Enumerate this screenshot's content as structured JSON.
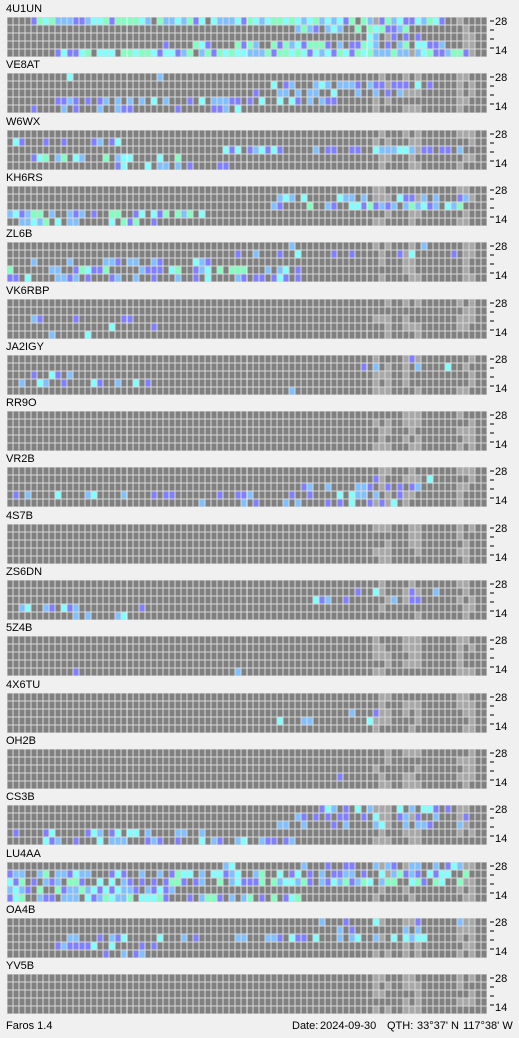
{
  "app": {
    "name": "Faros 1.4"
  },
  "status_bar": {
    "date_label": "Date:",
    "date": "2024-09-30",
    "qth_label": "QTH:",
    "qth_lat": "33°37' N",
    "qth_lon": "117°38' W"
  },
  "axis": {
    "top": "28",
    "bottom": "14"
  },
  "colors": {
    "background": "#f0f0f0",
    "cell_empty": "#808080",
    "cell_highlight": "#a8a8a8",
    "gridline": "#d8d8d8",
    "signal_weak": "#8080ff",
    "signal_medium": "#80c0ff",
    "signal_strong": "#80ffff",
    "signal_max": "#80ffc0"
  },
  "beacons": [
    {
      "call": "4U1UN",
      "seed": 11,
      "activity": [
        [
          0.85,
          0.05,
          0.9
        ],
        [
          0.6,
          0.6,
          0.85
        ],
        [
          0.35,
          0.75,
          0.85
        ],
        [
          0.75,
          0.3,
          0.9
        ],
        [
          0.9,
          0.1,
          0.95
        ]
      ]
    },
    {
      "call": "VE8AT",
      "seed": 23,
      "activity": [
        [
          0.05,
          0.0,
          0.45
        ],
        [
          0.35,
          0.55,
          0.9
        ],
        [
          0.4,
          0.5,
          0.9
        ],
        [
          0.5,
          0.1,
          0.7
        ],
        [
          0.25,
          0.05,
          0.5
        ]
      ]
    },
    {
      "call": "W6WX",
      "seed": 37,
      "activity": [
        [
          0.1,
          0.0,
          0.2
        ],
        [
          0.3,
          0.0,
          0.3
        ],
        [
          0.5,
          0.45,
          0.95
        ],
        [
          0.55,
          0.05,
          0.35
        ],
        [
          0.3,
          0.2,
          0.45
        ]
      ]
    },
    {
      "call": "KH6RS",
      "seed": 41,
      "activity": [
        [
          0.05,
          0.55,
          0.9
        ],
        [
          0.5,
          0.55,
          0.95
        ],
        [
          0.6,
          0.55,
          0.95
        ],
        [
          0.75,
          0.0,
          0.4
        ],
        [
          0.55,
          0.0,
          0.35
        ]
      ]
    },
    {
      "call": "ZL6B",
      "seed": 53,
      "activity": [
        [
          0.05,
          0.45,
          0.95
        ],
        [
          0.2,
          0.45,
          0.95
        ],
        [
          0.35,
          0.0,
          0.5
        ],
        [
          0.55,
          0.0,
          0.6
        ],
        [
          0.5,
          0.0,
          0.6
        ]
      ]
    },
    {
      "call": "VK6RBP",
      "seed": 67,
      "activity": [
        [
          0.0,
          0.0,
          0.1
        ],
        [
          0.0,
          0.0,
          0.1
        ],
        [
          0.1,
          0.0,
          0.3
        ],
        [
          0.08,
          0.0,
          0.4
        ],
        [
          0.05,
          0.0,
          0.6
        ]
      ]
    },
    {
      "call": "JA2IGY",
      "seed": 71,
      "activity": [
        [
          0.08,
          0.8,
          0.95
        ],
        [
          0.1,
          0.7,
          0.95
        ],
        [
          0.15,
          0.0,
          0.2
        ],
        [
          0.25,
          0.0,
          0.3
        ],
        [
          0.1,
          0.4,
          0.6
        ]
      ]
    },
    {
      "call": "RR9O",
      "seed": 83,
      "activity": [
        [
          0.0,
          0.0,
          0.1
        ],
        [
          0.0,
          0.0,
          0.1
        ],
        [
          0.0,
          0.0,
          0.1
        ],
        [
          0.0,
          0.0,
          0.1
        ],
        [
          0.02,
          0.0,
          0.15
        ]
      ]
    },
    {
      "call": "VR2B",
      "seed": 97,
      "activity": [
        [
          0.08,
          0.75,
          0.95
        ],
        [
          0.15,
          0.7,
          0.95
        ],
        [
          0.35,
          0.6,
          0.85
        ],
        [
          0.3,
          0.0,
          0.85
        ],
        [
          0.25,
          0.4,
          0.85
        ]
      ]
    },
    {
      "call": "4S7B",
      "seed": 101,
      "activity": [
        [
          0.0,
          0.0,
          0.1
        ],
        [
          0.0,
          0.0,
          0.1
        ],
        [
          0.0,
          0.0,
          0.1
        ],
        [
          0.0,
          0.0,
          0.1
        ],
        [
          0.0,
          0.0,
          0.1
        ]
      ]
    },
    {
      "call": "ZS6DN",
      "seed": 113,
      "activity": [
        [
          0.0,
          0.0,
          0.1
        ],
        [
          0.3,
          0.7,
          0.9
        ],
        [
          0.4,
          0.6,
          0.85
        ],
        [
          0.3,
          0.0,
          0.3
        ],
        [
          0.25,
          0.0,
          0.25
        ]
      ]
    },
    {
      "call": "5Z4B",
      "seed": 127,
      "activity": [
        [
          0.0,
          0.0,
          0.1
        ],
        [
          0.0,
          0.0,
          0.1
        ],
        [
          0.0,
          0.0,
          0.1
        ],
        [
          0.05,
          0.0,
          0.1
        ],
        [
          0.03,
          0.0,
          0.6
        ]
      ]
    },
    {
      "call": "4X6TU",
      "seed": 131,
      "activity": [
        [
          0.0,
          0.0,
          0.1
        ],
        [
          0.0,
          0.0,
          0.1
        ],
        [
          0.15,
          0.55,
          0.8
        ],
        [
          0.2,
          0.55,
          0.75
        ],
        [
          0.08,
          0.55,
          0.7
        ]
      ]
    },
    {
      "call": "OH2B",
      "seed": 139,
      "activity": [
        [
          0.0,
          0.0,
          0.1
        ],
        [
          0.0,
          0.0,
          0.1
        ],
        [
          0.0,
          0.0,
          0.1
        ],
        [
          0.1,
          0.55,
          0.75
        ],
        [
          0.0,
          0.0,
          0.1
        ]
      ]
    },
    {
      "call": "CS3B",
      "seed": 149,
      "activity": [
        [
          0.35,
          0.65,
          0.95
        ],
        [
          0.45,
          0.6,
          0.95
        ],
        [
          0.35,
          0.55,
          0.95
        ],
        [
          0.4,
          0.0,
          0.45
        ],
        [
          0.45,
          0.0,
          0.6
        ]
      ]
    },
    {
      "call": "LU4AA",
      "seed": 157,
      "activity": [
        [
          0.35,
          0.45,
          0.95
        ],
        [
          0.6,
          0.0,
          0.95
        ],
        [
          0.75,
          0.0,
          0.95
        ],
        [
          0.75,
          0.0,
          0.35
        ],
        [
          0.7,
          0.0,
          0.6
        ]
      ]
    },
    {
      "call": "OA4B",
      "seed": 163,
      "activity": [
        [
          0.15,
          0.65,
          0.95
        ],
        [
          0.2,
          0.55,
          0.95
        ],
        [
          0.35,
          0.1,
          0.9
        ],
        [
          0.45,
          0.1,
          0.3
        ],
        [
          0.2,
          0.1,
          0.3
        ]
      ]
    },
    {
      "call": "YV5B",
      "seed": 173,
      "activity": [
        [
          0.0,
          0.0,
          0.1
        ],
        [
          0.0,
          0.0,
          0.1
        ],
        [
          0.0,
          0.0,
          0.1
        ],
        [
          0.0,
          0.0,
          0.1
        ],
        [
          0.02,
          0.0,
          0.1
        ]
      ]
    }
  ]
}
